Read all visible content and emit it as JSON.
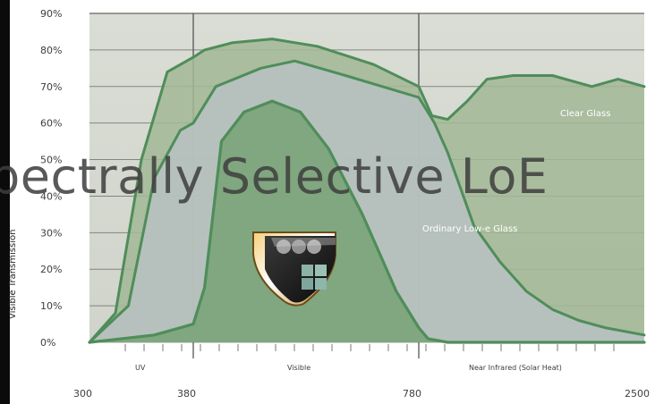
{
  "chart_data": {
    "type": "area",
    "title": "",
    "overlay_text": "pectrally Selective LoE",
    "ylabel": "Visible Transmission",
    "xlabel": "",
    "x_ticks": [
      "300",
      "380",
      "780",
      "2500"
    ],
    "y_ticks": [
      "0%",
      "10%",
      "20%",
      "30%",
      "40%",
      "50%",
      "60%",
      "70%",
      "80%",
      "90%"
    ],
    "ylim": [
      0,
      90
    ],
    "regions": [
      {
        "name": "UV",
        "label": "UV"
      },
      {
        "name": "visible",
        "label": "Visible"
      },
      {
        "name": "near-infrared",
        "label": "Near Infrared (Solar Heat)"
      }
    ],
    "series": [
      {
        "name": "Clear Glass",
        "points": [
          {
            "x": 300,
            "y": 0
          },
          {
            "x": 320,
            "y": 8
          },
          {
            "x": 340,
            "y": 50
          },
          {
            "x": 360,
            "y": 74
          },
          {
            "x": 380,
            "y": 78
          },
          {
            "x": 400,
            "y": 80
          },
          {
            "x": 450,
            "y": 82
          },
          {
            "x": 520,
            "y": 83
          },
          {
            "x": 600,
            "y": 81
          },
          {
            "x": 700,
            "y": 76
          },
          {
            "x": 780,
            "y": 70
          },
          {
            "x": 880,
            "y": 62
          },
          {
            "x": 1000,
            "y": 61
          },
          {
            "x": 1150,
            "y": 66
          },
          {
            "x": 1300,
            "y": 72
          },
          {
            "x": 1500,
            "y": 73
          },
          {
            "x": 1800,
            "y": 73
          },
          {
            "x": 2100,
            "y": 70
          },
          {
            "x": 2300,
            "y": 72
          },
          {
            "x": 2500,
            "y": 70
          }
        ]
      },
      {
        "name": "Ordinary Low-e Glass",
        "points": [
          {
            "x": 300,
            "y": 0
          },
          {
            "x": 330,
            "y": 10
          },
          {
            "x": 350,
            "y": 45
          },
          {
            "x": 370,
            "y": 58
          },
          {
            "x": 380,
            "y": 60
          },
          {
            "x": 420,
            "y": 70
          },
          {
            "x": 500,
            "y": 75
          },
          {
            "x": 560,
            "y": 77
          },
          {
            "x": 650,
            "y": 73
          },
          {
            "x": 780,
            "y": 67
          },
          {
            "x": 900,
            "y": 60
          },
          {
            "x": 1000,
            "y": 52
          },
          {
            "x": 1100,
            "y": 42
          },
          {
            "x": 1200,
            "y": 32
          },
          {
            "x": 1400,
            "y": 22
          },
          {
            "x": 1600,
            "y": 14
          },
          {
            "x": 1800,
            "y": 9
          },
          {
            "x": 2000,
            "y": 6
          },
          {
            "x": 2200,
            "y": 4
          },
          {
            "x": 2500,
            "y": 2
          }
        ]
      },
      {
        "name": "Spectrally Selective LoE",
        "points": [
          {
            "x": 300,
            "y": 0
          },
          {
            "x": 350,
            "y": 2
          },
          {
            "x": 380,
            "y": 5
          },
          {
            "x": 400,
            "y": 15
          },
          {
            "x": 430,
            "y": 55
          },
          {
            "x": 470,
            "y": 63
          },
          {
            "x": 520,
            "y": 66
          },
          {
            "x": 570,
            "y": 63
          },
          {
            "x": 620,
            "y": 53
          },
          {
            "x": 680,
            "y": 35
          },
          {
            "x": 740,
            "y": 14
          },
          {
            "x": 780,
            "y": 4
          },
          {
            "x": 850,
            "y": 1
          },
          {
            "x": 1000,
            "y": 0
          },
          {
            "x": 2500,
            "y": 0
          }
        ]
      }
    ],
    "series_labels": [
      "Clear Glass",
      "Ordinary Low-e Glass"
    ],
    "grid": true,
    "colors": {
      "plot_background": "#d6dad3",
      "clear_glass_fill": "#a3b896",
      "ordinary_fill": "#b8c2c3",
      "selective_fill": "#7ca57a",
      "line": "#4f8d5a",
      "grid": "#666666"
    }
  },
  "badge": {
    "name": "product-shield-badge"
  }
}
